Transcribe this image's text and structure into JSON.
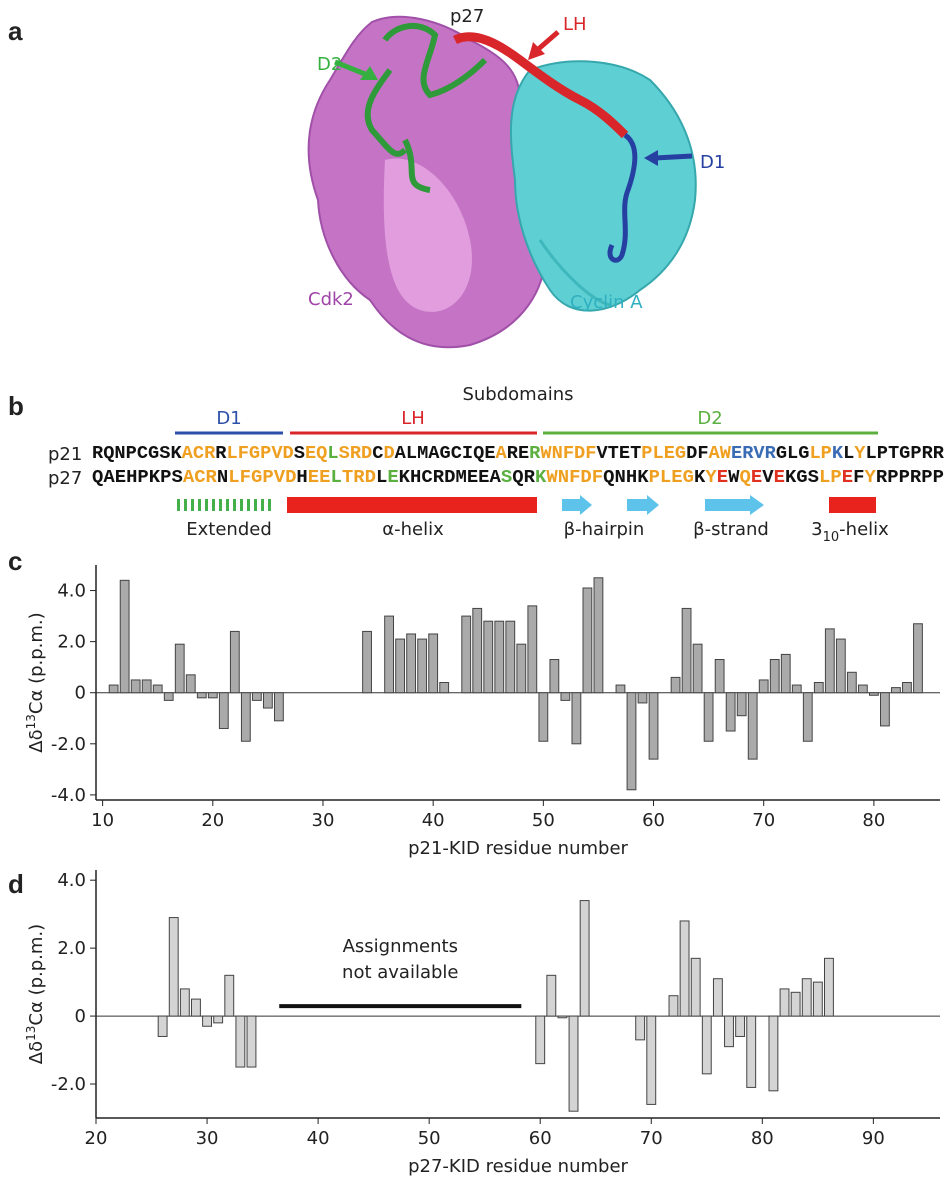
{
  "panel_labels": [
    "a",
    "b",
    "c",
    "d"
  ],
  "structure": {
    "labels": [
      "p27",
      "LH",
      "D2",
      "D1",
      "Cdk2",
      "Cyclin A"
    ]
  },
  "sequence": {
    "title": "Subdomains",
    "subdomains": [
      "D1",
      "LH",
      "D2"
    ],
    "rows": [
      {
        "name": "p21",
        "segments": [
          {
            "text": "RQNPCGSK",
            "color": "#111111"
          },
          {
            "text": "ACR",
            "color": "#f0a020"
          },
          {
            "text": "R",
            "color": "#111111"
          },
          {
            "text": "LFGPVD",
            "color": "#f0a020"
          },
          {
            "text": "S",
            "color": "#111111"
          },
          {
            "text": "EQ",
            "color": "#f0a020"
          },
          {
            "text": "L",
            "color": "#5bb040"
          },
          {
            "text": "SRD",
            "color": "#f0a020"
          },
          {
            "text": "C",
            "color": "#111111"
          },
          {
            "text": "D",
            "color": "#f0a020"
          },
          {
            "text": "ALMAGCIQE",
            "color": "#111111"
          },
          {
            "text": "A",
            "color": "#f0a020"
          },
          {
            "text": "RE",
            "color": "#111111"
          },
          {
            "text": "R",
            "color": "#5bb040"
          },
          {
            "text": "WNFDF",
            "color": "#f0a020"
          },
          {
            "text": "VTET",
            "color": "#111111"
          },
          {
            "text": "PLEG",
            "color": "#f0a020"
          },
          {
            "text": "DF",
            "color": "#111111"
          },
          {
            "text": "AW",
            "color": "#f0a020"
          },
          {
            "text": "ERVR",
            "color": "#3a6cb5"
          },
          {
            "text": "GLG",
            "color": "#111111"
          },
          {
            "text": "LP",
            "color": "#f0a020"
          },
          {
            "text": "K",
            "color": "#3a6cb5"
          },
          {
            "text": "L",
            "color": "#111111"
          },
          {
            "text": "Y",
            "color": "#f0a020"
          },
          {
            "text": "LPTGPRR",
            "color": "#111111"
          }
        ]
      },
      {
        "name": "p27",
        "segments": [
          {
            "text": "QAEHPKPS",
            "color": "#111111"
          },
          {
            "text": "ACR",
            "color": "#f0a020"
          },
          {
            "text": "N",
            "color": "#111111"
          },
          {
            "text": "LFGPVD",
            "color": "#f0a020"
          },
          {
            "text": "H",
            "color": "#111111"
          },
          {
            "text": "EE",
            "color": "#f0a020"
          },
          {
            "text": "L",
            "color": "#5bb040"
          },
          {
            "text": "TRD",
            "color": "#f0a020"
          },
          {
            "text": "L",
            "color": "#111111"
          },
          {
            "text": "E",
            "color": "#5bb040"
          },
          {
            "text": "KHCRDMEEA",
            "color": "#111111"
          },
          {
            "text": "S",
            "color": "#5bb040"
          },
          {
            "text": "QR",
            "color": "#111111"
          },
          {
            "text": "K",
            "color": "#5bb040"
          },
          {
            "text": "WNFDF",
            "color": "#f0a020"
          },
          {
            "text": "QNHK",
            "color": "#111111"
          },
          {
            "text": "PLEG",
            "color": "#f0a020"
          },
          {
            "text": "K",
            "color": "#111111"
          },
          {
            "text": "Y",
            "color": "#f0a020"
          },
          {
            "text": "E",
            "color": "#e03020"
          },
          {
            "text": "W",
            "color": "#111111"
          },
          {
            "text": "Q",
            "color": "#f0a020"
          },
          {
            "text": "E",
            "color": "#e03020"
          },
          {
            "text": "V",
            "color": "#111111"
          },
          {
            "text": "E",
            "color": "#e03020"
          },
          {
            "text": "KGS",
            "color": "#111111"
          },
          {
            "text": "LP",
            "color": "#f0a020"
          },
          {
            "text": "E",
            "color": "#e03020"
          },
          {
            "text": "F",
            "color": "#111111"
          },
          {
            "text": "Y",
            "color": "#f0a020"
          },
          {
            "text": "RPPRPP",
            "color": "#111111"
          }
        ]
      }
    ],
    "secondary_structure": [
      "Extended",
      "α-helix",
      "β-hairpin",
      "β-strand",
      [
        "3",
        "10",
        "-helix"
      ]
    ]
  },
  "chart_data": [
    {
      "type": "bar",
      "color": "#aaaaaa",
      "x": [
        11,
        12,
        13,
        14,
        15,
        16,
        17,
        18,
        19,
        20,
        21,
        22,
        23,
        24,
        25,
        26,
        34,
        36,
        37,
        38,
        39,
        40,
        41,
        43,
        44,
        45,
        46,
        47,
        48,
        49,
        50,
        51,
        52,
        53,
        54,
        55,
        57,
        58,
        59,
        60,
        62,
        63,
        64,
        65,
        66,
        67,
        68,
        69,
        70,
        71,
        72,
        73,
        74,
        75,
        76,
        77,
        78,
        79,
        80,
        81,
        82,
        83,
        84
      ],
      "values": [
        0.3,
        4.4,
        0.5,
        0.5,
        0.3,
        -0.3,
        1.9,
        0.7,
        -0.2,
        -0.2,
        -1.4,
        2.4,
        -1.9,
        -0.3,
        -0.6,
        -1.1,
        2.4,
        3.0,
        2.1,
        2.3,
        2.1,
        2.3,
        0.4,
        3.0,
        3.3,
        2.8,
        2.8,
        2.8,
        1.9,
        3.4,
        -1.9,
        1.3,
        -0.3,
        -2.0,
        4.1,
        4.5,
        0.3,
        -3.8,
        -0.4,
        -2.6,
        0.6,
        3.3,
        1.9,
        -1.9,
        1.3,
        -1.5,
        -0.9,
        -2.6,
        0.5,
        1.3,
        1.5,
        0.3,
        -1.9,
        0.4,
        2.5,
        2.1,
        0.8,
        0.3,
        -0.1,
        -1.3,
        0.2,
        0.4,
        2.7
      ],
      "xlim": [
        9.4,
        86
      ],
      "xticks": [
        10,
        20,
        30,
        40,
        50,
        60,
        70,
        80
      ],
      "ylim": [
        -4.2,
        5
      ],
      "yticks": [
        {
          "value": -4,
          "label": "-4.0"
        },
        {
          "value": -2,
          "label": "-2.0"
        },
        0,
        {
          "value": 2,
          "label": "2.0"
        },
        {
          "value": 4,
          "label": "4.0"
        }
      ],
      "xlabel": "p21-KID residue number",
      "ylabel": [
        "Δδ",
        "13",
        "Cα (p.p.m.)"
      ]
    },
    {
      "type": "bar",
      "color": "#d4d4d4",
      "x": [
        26,
        27,
        28,
        29,
        30,
        31,
        32,
        33,
        34,
        60,
        61,
        62,
        63,
        64,
        69,
        70,
        72,
        73,
        74,
        75,
        76,
        77,
        78,
        79,
        81,
        82,
        83,
        84,
        85,
        86
      ],
      "values": [
        -0.6,
        2.9,
        0.8,
        0.5,
        -0.3,
        -0.2,
        1.2,
        -1.5,
        -1.5,
        -1.4,
        1.2,
        -0.05,
        -2.8,
        3.4,
        -0.7,
        -2.6,
        0.6,
        2.8,
        1.7,
        -1.7,
        1.1,
        -0.9,
        -0.6,
        -2.1,
        -2.2,
        0.8,
        0.7,
        1.1,
        1.0,
        1.7
      ],
      "xlim": [
        20,
        96
      ],
      "xticks": [
        20,
        30,
        40,
        50,
        60,
        70,
        80,
        90
      ],
      "ylim": [
        -3,
        4.3
      ],
      "yticks": [
        {
          "value": -2,
          "label": "-2.0"
        },
        0,
        {
          "value": 2,
          "label": "2.0"
        },
        {
          "value": 4,
          "label": "4.0"
        }
      ],
      "xlabel": "p27-KID residue number",
      "ylabel": [
        "Δδ",
        "13",
        "Cα (p.p.m.)"
      ],
      "annotation": {
        "text": [
          "Assignments",
          "not available"
        ],
        "span": [
          36.5,
          58.3
        ]
      }
    }
  ]
}
